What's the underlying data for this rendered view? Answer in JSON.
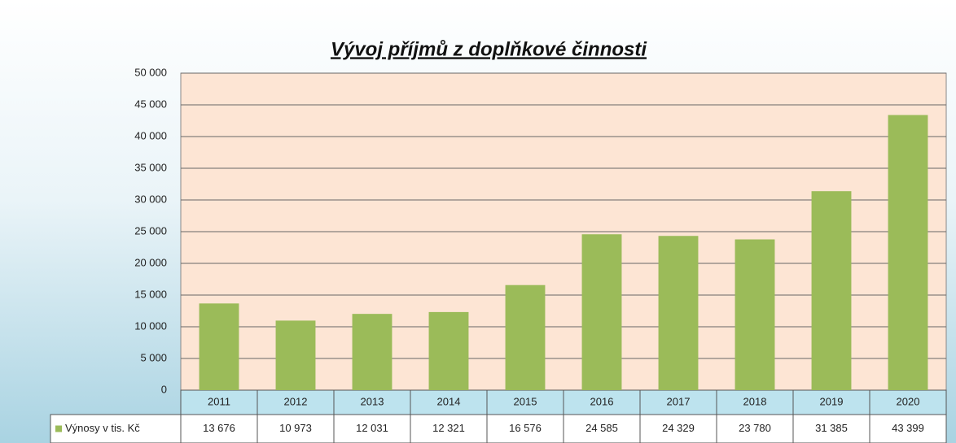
{
  "chart_data": {
    "type": "bar",
    "title": "Vývoj příjmů z doplňkové činnosti",
    "categories": [
      "2011",
      "2012",
      "2013",
      "2014",
      "2015",
      "2016",
      "2017",
      "2018",
      "2019",
      "2020"
    ],
    "series": [
      {
        "name": "Výnosy v tis. Kč",
        "color": "#9bbb59",
        "values": [
          13676,
          10973,
          12031,
          12321,
          16576,
          24585,
          24329,
          23780,
          31385,
          43399
        ],
        "value_labels": [
          "13 676",
          "10 973",
          "12 031",
          "12 321",
          "16 576",
          "24 585",
          "24 329",
          "23 780",
          "31 385",
          "43 399"
        ]
      }
    ],
    "ylim": [
      0,
      50000
    ],
    "yticks": [
      0,
      {
        "value": 5000,
        "label": "5 000"
      },
      {
        "value": 10000,
        "label": "10 000"
      },
      {
        "value": 15000,
        "label": "15 000"
      },
      {
        "value": 20000,
        "label": "20 000"
      },
      {
        "value": 25000,
        "label": "25 000"
      },
      {
        "value": 30000,
        "label": "30 000"
      },
      {
        "value": 35000,
        "label": "35 000"
      },
      {
        "value": 40000,
        "label": "40 000"
      },
      {
        "value": 45000,
        "label": "45 000"
      },
      {
        "value": 50000,
        "label": "50 000"
      }
    ],
    "grid": true
  }
}
